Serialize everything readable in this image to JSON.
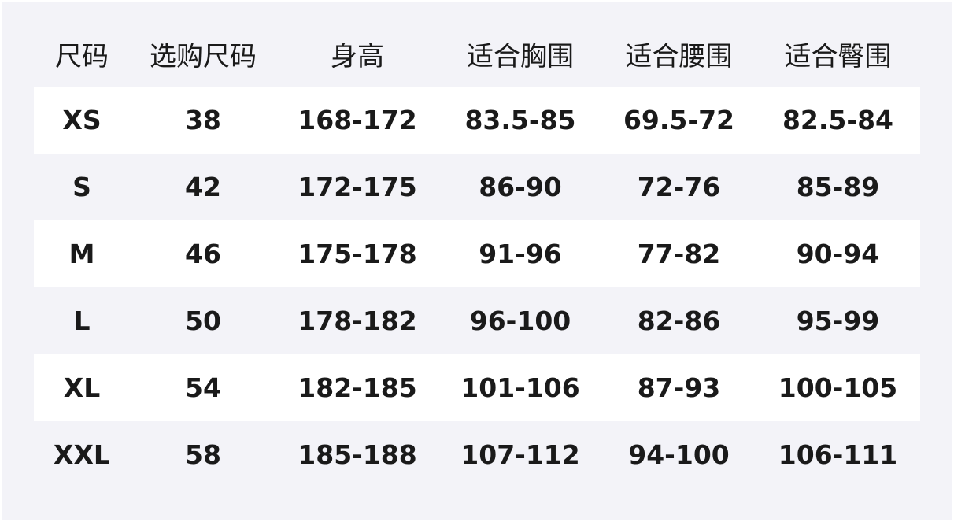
{
  "headers": [
    "尺码",
    "选购尺码",
    "身高",
    "适合胸围",
    "适合腰围",
    "适合臀围"
  ],
  "rows": [
    [
      "XS",
      "38",
      "168-172",
      "83.5-85",
      "69.5-72",
      "82.5-84"
    ],
    [
      "S",
      "42",
      "172-175",
      "86-90",
      "72-76",
      "85-89"
    ],
    [
      "M",
      "46",
      "175-178",
      "91-96",
      "77-82",
      "90-94"
    ],
    [
      "L",
      "50",
      "178-182",
      "96-100",
      "82-86",
      "95-99"
    ],
    [
      "XL",
      "54",
      "182-185",
      "101-106",
      "87-93",
      "100-105"
    ],
    [
      "XXL",
      "58",
      "185-188",
      "107-112",
      "94-100",
      "106-111"
    ]
  ],
  "colors": {
    "background": "#f3f3f8",
    "stripe": "#ffffff",
    "text": "#1a1a1a"
  }
}
